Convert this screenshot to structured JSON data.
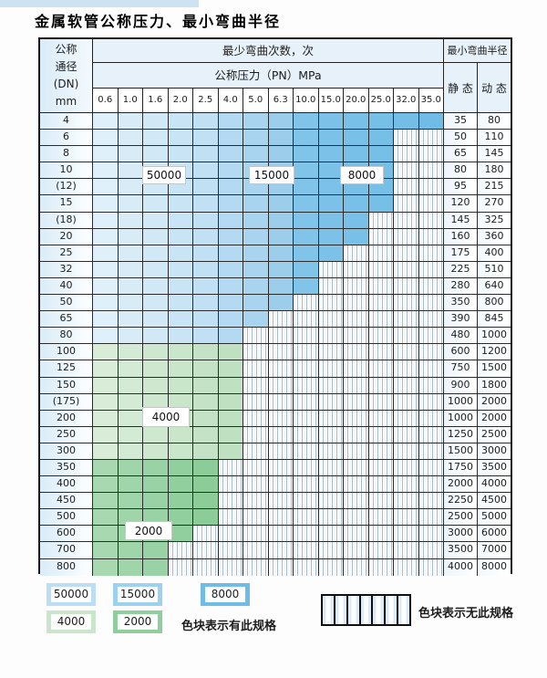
{
  "title": "金属软管公称压力、最小弯曲半径",
  "header": {
    "dn_lines": [
      "公称",
      "通径",
      "(DN)",
      "mm"
    ],
    "min_bend_cycles": "最少弯曲次数，次",
    "nominal_pressure": "公称压力（PN）MPa",
    "min_bend_radius": "最小弯曲半径",
    "static": "静 态",
    "dynamic": "动 态"
  },
  "pressure_columns": [
    "0.6",
    "1.0",
    "1.6",
    "2.0",
    "2.5",
    "4.0",
    "5.0",
    "6.3",
    "10.0",
    "15.0",
    "20.0",
    "25.0",
    "32.0",
    "35.0"
  ],
  "grid_labels": {
    "l50000": "50000",
    "l15000": "15000",
    "l8000": "8000",
    "l4000": "4000",
    "l2000": "2000"
  },
  "colors": {
    "blue_columns": [
      "#dff0fa",
      "#d8ecf8",
      "#d1e8f7",
      "#c9e4f5",
      "#c1e0f3",
      "#b3daf2",
      "#a8d4ef",
      "#9cceec",
      "#80c4e9",
      "#7cc2e8",
      "#79c0e8",
      "#76bfe7",
      "#73bde7",
      "#70bce6"
    ],
    "green4_columns": [
      "#d8ecd8",
      "#d3ead4",
      "#cee8cf",
      "#c9e6cb",
      "#c4e3c6",
      "#bfe1c2"
    ],
    "green2_columns": [
      "#a7d8b0",
      "#a0d5aa",
      "#99d2a4",
      "#92cf9e",
      "#8bcc98"
    ],
    "grid_line": "#2b2b2b"
  },
  "rows": [
    {
      "dn": "4",
      "avail": 14,
      "zone": "blue",
      "static": "35",
      "dynamic": "80"
    },
    {
      "dn": "6",
      "avail": 12,
      "zone": "blue",
      "static": "50",
      "dynamic": "110"
    },
    {
      "dn": "8",
      "avail": 12,
      "zone": "blue",
      "static": "65",
      "dynamic": "145"
    },
    {
      "dn": "10",
      "avail": 12,
      "zone": "blue",
      "static": "80",
      "dynamic": "180"
    },
    {
      "dn": "(12)",
      "avail": 12,
      "zone": "blue",
      "static": "95",
      "dynamic": "215"
    },
    {
      "dn": "15",
      "avail": 12,
      "zone": "blue",
      "static": "120",
      "dynamic": "270"
    },
    {
      "dn": "(18)",
      "avail": 11,
      "zone": "blue",
      "static": "145",
      "dynamic": "325"
    },
    {
      "dn": "20",
      "avail": 11,
      "zone": "blue",
      "static": "160",
      "dynamic": "360"
    },
    {
      "dn": "25",
      "avail": 10,
      "zone": "blue",
      "static": "175",
      "dynamic": "400"
    },
    {
      "dn": "32",
      "avail": 9,
      "zone": "blue",
      "static": "225",
      "dynamic": "510"
    },
    {
      "dn": "40",
      "avail": 9,
      "zone": "blue",
      "static": "280",
      "dynamic": "640"
    },
    {
      "dn": "50",
      "avail": 8,
      "zone": "blue",
      "static": "350",
      "dynamic": "800"
    },
    {
      "dn": "65",
      "avail": 7,
      "zone": "blue",
      "static": "390",
      "dynamic": "845"
    },
    {
      "dn": "80",
      "avail": 6,
      "zone": "blue",
      "static": "480",
      "dynamic": "1000"
    },
    {
      "dn": "100",
      "avail": 6,
      "zone": "g4",
      "static": "600",
      "dynamic": "1200"
    },
    {
      "dn": "125",
      "avail": 6,
      "zone": "g4",
      "static": "750",
      "dynamic": "1500"
    },
    {
      "dn": "150",
      "avail": 6,
      "zone": "g4",
      "static": "900",
      "dynamic": "1800"
    },
    {
      "dn": "(175)",
      "avail": 6,
      "zone": "g4",
      "static": "1000",
      "dynamic": "2000"
    },
    {
      "dn": "200",
      "avail": 6,
      "zone": "g4",
      "static": "1000",
      "dynamic": "2000"
    },
    {
      "dn": "250",
      "avail": 6,
      "zone": "g4",
      "static": "1250",
      "dynamic": "2500"
    },
    {
      "dn": "300",
      "avail": 6,
      "zone": "g4",
      "static": "1500",
      "dynamic": "3000"
    },
    {
      "dn": "350",
      "avail": 5,
      "zone": "g2",
      "static": "1750",
      "dynamic": "3500"
    },
    {
      "dn": "400",
      "avail": 5,
      "zone": "g2",
      "static": "2000",
      "dynamic": "4000"
    },
    {
      "dn": "450",
      "avail": 5,
      "zone": "g2",
      "static": "2250",
      "dynamic": "4500"
    },
    {
      "dn": "500",
      "avail": 5,
      "zone": "g2",
      "static": "2500",
      "dynamic": "5000"
    },
    {
      "dn": "600",
      "avail": 4,
      "zone": "g2",
      "static": "3000",
      "dynamic": "6000"
    },
    {
      "dn": "700",
      "avail": 3,
      "zone": "g2",
      "static": "3500",
      "dynamic": "7000"
    },
    {
      "dn": "800",
      "avail": 3,
      "zone": "g2",
      "static": "4000",
      "dynamic": "8000"
    }
  ],
  "legend": {
    "items": [
      {
        "label": "50000",
        "color": "#bcdef5"
      },
      {
        "label": "15000",
        "color": "#9dd1f0"
      },
      {
        "label": "8000",
        "color": "#6fbce6"
      },
      {
        "label": "4000",
        "color": "#c9e5cb"
      },
      {
        "label": "2000",
        "color": "#8fce9d"
      }
    ],
    "available_text": "色块表示有此规格",
    "unavailable_text": "色块表示无此规格"
  }
}
